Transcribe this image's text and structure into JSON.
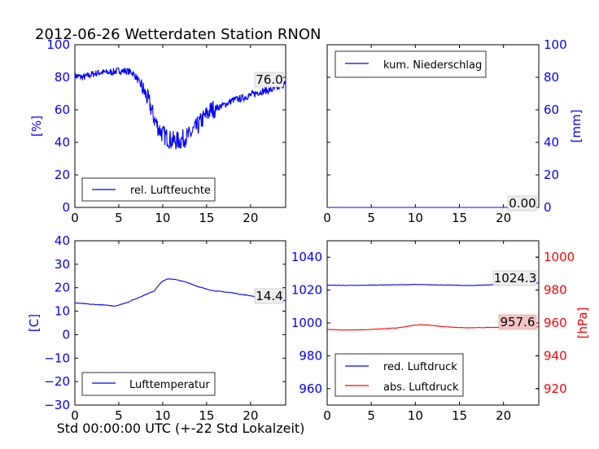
{
  "title": "2012-06-26 Wetterdaten Station RNON",
  "xlabel": "Std 00:00:00 UTC (+-22 Std Lokalzeit)",
  "colors": {
    "axis_blue": "#0000ff",
    "axis_red": "#ff0000",
    "series_blue": "#0000ff",
    "series_red": "#ff0000",
    "annotation_red_bg": "#f4c4c4"
  },
  "chart_data": [
    {
      "id": "humidity",
      "type": "line",
      "ylabel": "[%]",
      "xlim": [
        0,
        24
      ],
      "ylim": [
        0,
        100
      ],
      "xticks": [
        "0",
        "5",
        "10",
        "15",
        "20"
      ],
      "yticks": [
        "0",
        "20",
        "40",
        "60",
        "80",
        "100"
      ],
      "legend": {
        "position": "lower-left",
        "entries": [
          "rel. Luftfeuchte"
        ]
      },
      "annotation": "76.0",
      "series": [
        {
          "name": "rel. Luftfeuchte",
          "color": "#0000ff",
          "noisy": true,
          "x": [
            0,
            1,
            2,
            3,
            4,
            5,
            5.7,
            6.5,
            7,
            7.5,
            8,
            8.5,
            9,
            9.5,
            10,
            10.5,
            11,
            11.5,
            12,
            12.5,
            13,
            13.5,
            14,
            14.5,
            15,
            15.5,
            16,
            16.5,
            17,
            18,
            19,
            20,
            21,
            22,
            23,
            23.5,
            24
          ],
          "y": [
            81,
            80,
            82,
            83,
            83,
            84,
            84,
            83,
            80,
            75,
            70,
            64,
            55,
            49,
            45,
            43,
            41,
            41,
            41,
            43,
            44,
            47,
            50,
            54,
            57,
            60,
            61,
            62,
            63,
            66,
            67,
            69,
            71,
            72,
            73,
            75,
            76
          ]
        }
      ]
    },
    {
      "id": "precipitation",
      "type": "line",
      "ylabel": "[mm]",
      "xlim": [
        0,
        24
      ],
      "ylim": [
        0,
        100
      ],
      "xticks": [
        "0",
        "5",
        "10",
        "15",
        "20"
      ],
      "yticks": [
        "0",
        "20",
        "40",
        "60",
        "80",
        "100"
      ],
      "legend": {
        "position": "upper-left",
        "entries": [
          "kum. Niederschlag"
        ]
      },
      "annotation": "0.00",
      "series": [
        {
          "name": "kum. Niederschlag",
          "color": "#0000ff",
          "noisy": false,
          "x": [
            0,
            24
          ],
          "y": [
            0,
            0
          ]
        }
      ]
    },
    {
      "id": "temperature",
      "type": "line",
      "ylabel": "[C]",
      "xlim": [
        0,
        24
      ],
      "ylim": [
        -30,
        40
      ],
      "xticks": [
        "0",
        "5",
        "10",
        "15",
        "20"
      ],
      "yticks": [
        "−30",
        "−20",
        "−10",
        "0",
        "10",
        "20",
        "30",
        "40"
      ],
      "legend": {
        "position": "lower-left",
        "entries": [
          "Lufttemperatur"
        ]
      },
      "annotation": "14.4",
      "series": [
        {
          "name": "Lufttemperatur",
          "color": "#0000ff",
          "noisy": false,
          "x": [
            0,
            1,
            2,
            3,
            4,
            4.5,
            5,
            6,
            7,
            8,
            9,
            9.5,
            10,
            10.5,
            11,
            11.5,
            12,
            13,
            14,
            15,
            16,
            17,
            18,
            19,
            20,
            21,
            22,
            23,
            24
          ],
          "y": [
            13.5,
            13.2,
            12.9,
            12.7,
            12.4,
            12.2,
            12.6,
            13.8,
            15.4,
            17.0,
            18.5,
            21.0,
            22.8,
            23.6,
            23.8,
            23.4,
            23.0,
            22.0,
            20.5,
            19.4,
            18.6,
            18.2,
            17.8,
            17.1,
            16.6,
            15.9,
            15.3,
            14.8,
            14.4
          ]
        }
      ]
    },
    {
      "id": "pressure",
      "type": "line",
      "xlim": [
        0,
        24
      ],
      "ylim": [
        950,
        1050
      ],
      "ylim_right": [
        910,
        1010
      ],
      "ylabel_right": "[hPa]",
      "xticks": [
        "0",
        "5",
        "10",
        "15",
        "20"
      ],
      "yticks": [
        "960",
        "980",
        "1000",
        "1020",
        "1040"
      ],
      "yticks_right": [
        "920",
        "940",
        "960",
        "980",
        "1000"
      ],
      "legend": {
        "position": "lower-left",
        "entries": [
          "red. Luftdruck",
          "abs. Luftdruck"
        ]
      },
      "annotations": [
        "1024.3",
        "957.6"
      ],
      "series": [
        {
          "name": "red. Luftdruck",
          "color": "#0000ff",
          "axis": "left",
          "x": [
            0,
            3,
            6,
            9,
            10,
            12,
            15,
            16,
            18,
            21,
            24
          ],
          "y": [
            1023.0,
            1022.8,
            1023.1,
            1023.3,
            1023.4,
            1023.2,
            1022.9,
            1022.7,
            1023.1,
            1023.7,
            1024.3
          ]
        },
        {
          "name": "abs. Luftdruck",
          "color": "#ff0000",
          "axis": "right",
          "x": [
            0,
            2,
            4,
            6,
            8,
            9.5,
            10.5,
            11.5,
            13,
            15,
            16,
            18,
            20,
            22,
            24
          ],
          "y": [
            956.0,
            955.7,
            955.8,
            956.3,
            957.0,
            958.3,
            958.9,
            958.7,
            957.8,
            957.2,
            957.0,
            957.2,
            957.3,
            957.4,
            957.6
          ]
        }
      ]
    }
  ]
}
